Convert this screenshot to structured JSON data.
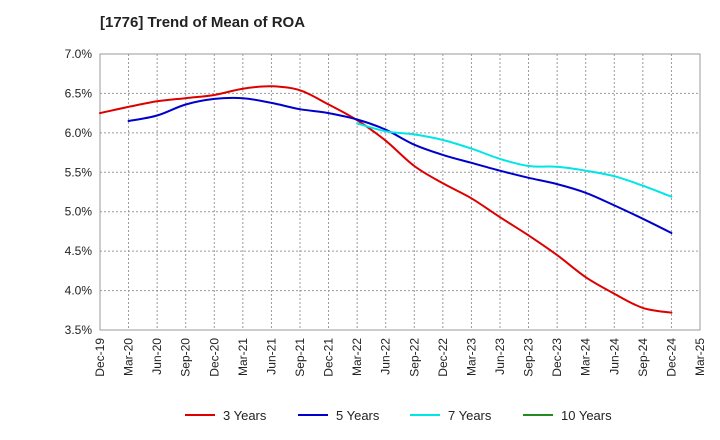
{
  "chart_data": {
    "type": "line",
    "title": "[1776]  Trend of Mean of ROA",
    "xlabel": "",
    "ylabel": "",
    "ylim": [
      3.5,
      7.0
    ],
    "yticks": [
      3.5,
      4.0,
      4.5,
      5.0,
      5.5,
      6.0,
      6.5,
      7.0
    ],
    "ytick_labels": [
      "3.5%",
      "4.0%",
      "4.5%",
      "5.0%",
      "5.5%",
      "6.0%",
      "6.5%",
      "7.0%"
    ],
    "categories": [
      "Dec-19",
      "Mar-20",
      "Jun-20",
      "Sep-20",
      "Dec-20",
      "Mar-21",
      "Jun-21",
      "Sep-21",
      "Dec-21",
      "Mar-22",
      "Jun-22",
      "Sep-22",
      "Dec-22",
      "Mar-23",
      "Jun-23",
      "Sep-23",
      "Dec-23",
      "Mar-24",
      "Jun-24",
      "Sep-24",
      "Dec-24",
      "Mar-25"
    ],
    "grid": true,
    "legend_position": "bottom",
    "series": [
      {
        "name": "3 Years",
        "color": "#dd0000",
        "values": [
          6.25,
          6.33,
          6.4,
          6.44,
          6.48,
          6.56,
          6.59,
          6.54,
          6.36,
          6.16,
          5.9,
          5.58,
          5.36,
          5.17,
          4.93,
          4.7,
          4.45,
          4.17,
          3.96,
          3.78,
          3.72,
          null
        ]
      },
      {
        "name": "5 Years",
        "color": "#0000cc",
        "values": [
          null,
          6.15,
          6.22,
          6.36,
          6.43,
          6.44,
          6.38,
          6.3,
          6.25,
          6.17,
          6.04,
          5.85,
          5.72,
          5.62,
          5.52,
          5.43,
          5.35,
          5.24,
          5.08,
          4.91,
          4.73,
          null
        ]
      },
      {
        "name": "7 Years",
        "color": "#00e5e5",
        "values": [
          null,
          null,
          null,
          null,
          null,
          null,
          null,
          null,
          null,
          6.12,
          6.02,
          5.98,
          5.91,
          5.8,
          5.67,
          5.58,
          5.57,
          5.52,
          5.45,
          5.33,
          5.19,
          null
        ]
      },
      {
        "name": "10 Years",
        "color": "#228b22",
        "values": [
          null,
          null,
          null,
          null,
          null,
          null,
          null,
          null,
          null,
          null,
          null,
          null,
          null,
          null,
          null,
          null,
          null,
          null,
          null,
          null,
          null,
          null
        ]
      }
    ]
  }
}
